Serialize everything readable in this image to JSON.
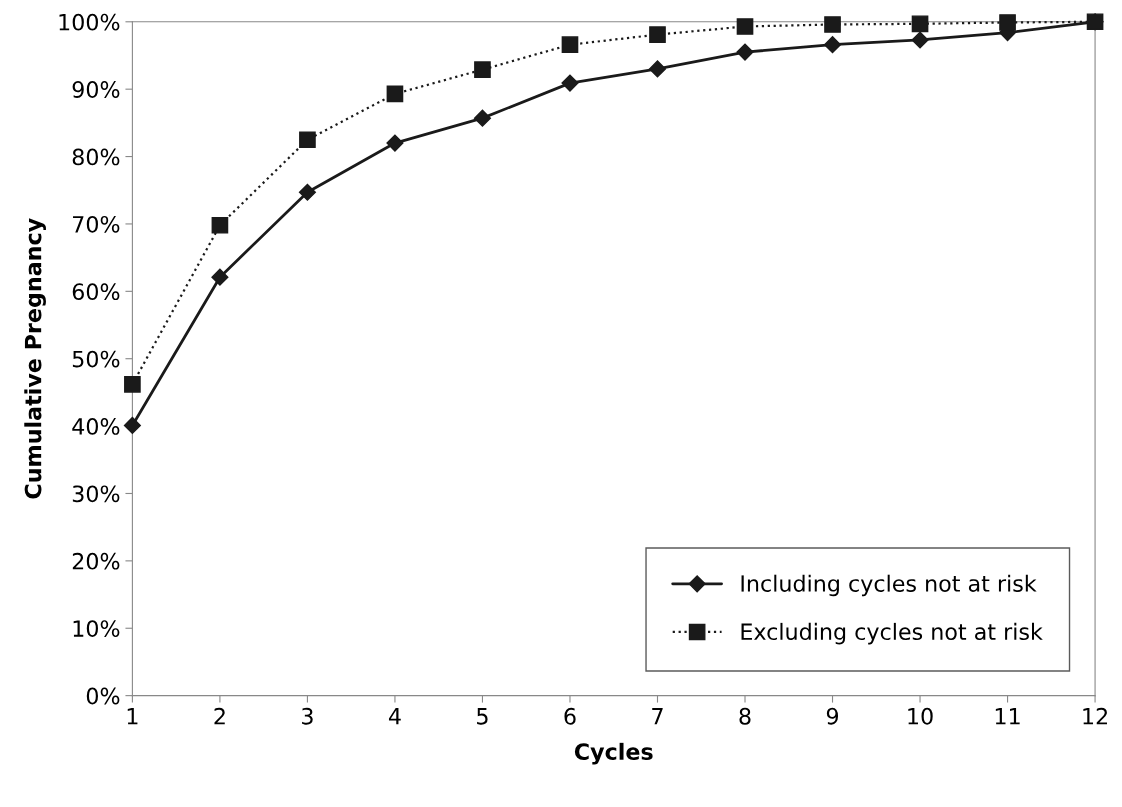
{
  "chart_data": {
    "type": "line",
    "xlabel": "Cycles",
    "ylabel": "Cumulative Pregnancy",
    "x": [
      1,
      2,
      3,
      4,
      5,
      6,
      7,
      8,
      9,
      10,
      11,
      12
    ],
    "series": [
      {
        "name": "Including cycles not at risk",
        "color": "#1a1a1a",
        "marker": "diamond",
        "line_style": "solid",
        "values": [
          40.1,
          62.1,
          74.7,
          82.0,
          85.7,
          90.9,
          93.0,
          95.5,
          96.6,
          97.3,
          98.4,
          100
        ]
      },
      {
        "name": "Excluding cycles not at risk",
        "color": "#1a1a1a",
        "marker": "square",
        "line_style": "dotted",
        "values": [
          46.2,
          69.8,
          82.5,
          89.3,
          92.9,
          96.6,
          98.1,
          99.3,
          99.6,
          99.7,
          99.9,
          100
        ]
      }
    ],
    "xlim": [
      1,
      12
    ],
    "xticks": [
      1,
      2,
      3,
      4,
      5,
      6,
      7,
      8,
      9,
      10,
      11,
      12
    ],
    "ylim": [
      0,
      100
    ],
    "yticks": [
      {
        "value": 0,
        "label": "0%"
      },
      {
        "value": 10,
        "label": "10%"
      },
      {
        "value": 20,
        "label": "20%"
      },
      {
        "value": 30,
        "label": "30%"
      },
      {
        "value": 40,
        "label": "40%"
      },
      {
        "value": 50,
        "label": "50%"
      },
      {
        "value": 60,
        "label": "60%"
      },
      {
        "value": 70,
        "label": "70%"
      },
      {
        "value": 80,
        "label": "80%"
      },
      {
        "value": 90,
        "label": "90%"
      },
      {
        "value": 100,
        "label": "100%"
      }
    ],
    "grid": false,
    "legend": "bottom right"
  }
}
